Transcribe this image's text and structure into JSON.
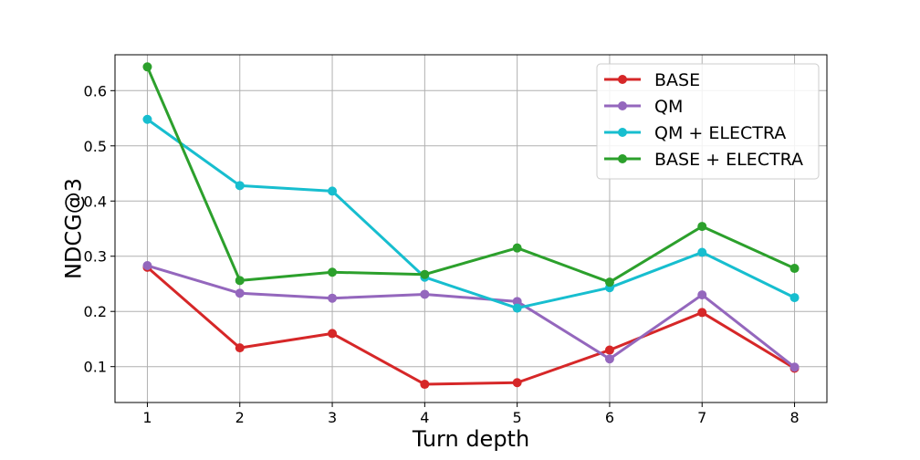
{
  "chart_data": {
    "type": "line",
    "xlabel": "Turn depth",
    "ylabel": "NDCG@3",
    "x": [
      1,
      2,
      3,
      4,
      5,
      6,
      7,
      8
    ],
    "xlim": [
      0.65,
      8.35
    ],
    "ylim": [
      0.035,
      0.665
    ],
    "yticks": [
      0.1,
      0.2,
      0.3,
      0.4,
      0.5,
      0.6
    ],
    "ytick_labels": [
      "0.1",
      "0.2",
      "0.3",
      "0.4",
      "0.5",
      "0.6"
    ],
    "xtick_labels": [
      "1",
      "2",
      "3",
      "4",
      "5",
      "6",
      "7",
      "8"
    ],
    "grid": true,
    "legend_position": "top-right",
    "series": [
      {
        "name": "BASE",
        "color": "#d62728",
        "values": [
          0.28,
          0.134,
          0.16,
          0.068,
          0.071,
          0.13,
          0.198,
          0.097
        ]
      },
      {
        "name": "QM",
        "color": "#9467bd",
        "values": [
          0.283,
          0.233,
          0.224,
          0.231,
          0.218,
          0.114,
          0.23,
          0.099
        ]
      },
      {
        "name": "QM + ELECTRA",
        "color": "#17becf",
        "values": [
          0.548,
          0.428,
          0.418,
          0.262,
          0.206,
          0.243,
          0.307,
          0.225
        ]
      },
      {
        "name": "BASE + ELECTRA",
        "color": "#2ca02c",
        "values": [
          0.643,
          0.256,
          0.271,
          0.267,
          0.315,
          0.253,
          0.354,
          0.278
        ]
      }
    ]
  }
}
